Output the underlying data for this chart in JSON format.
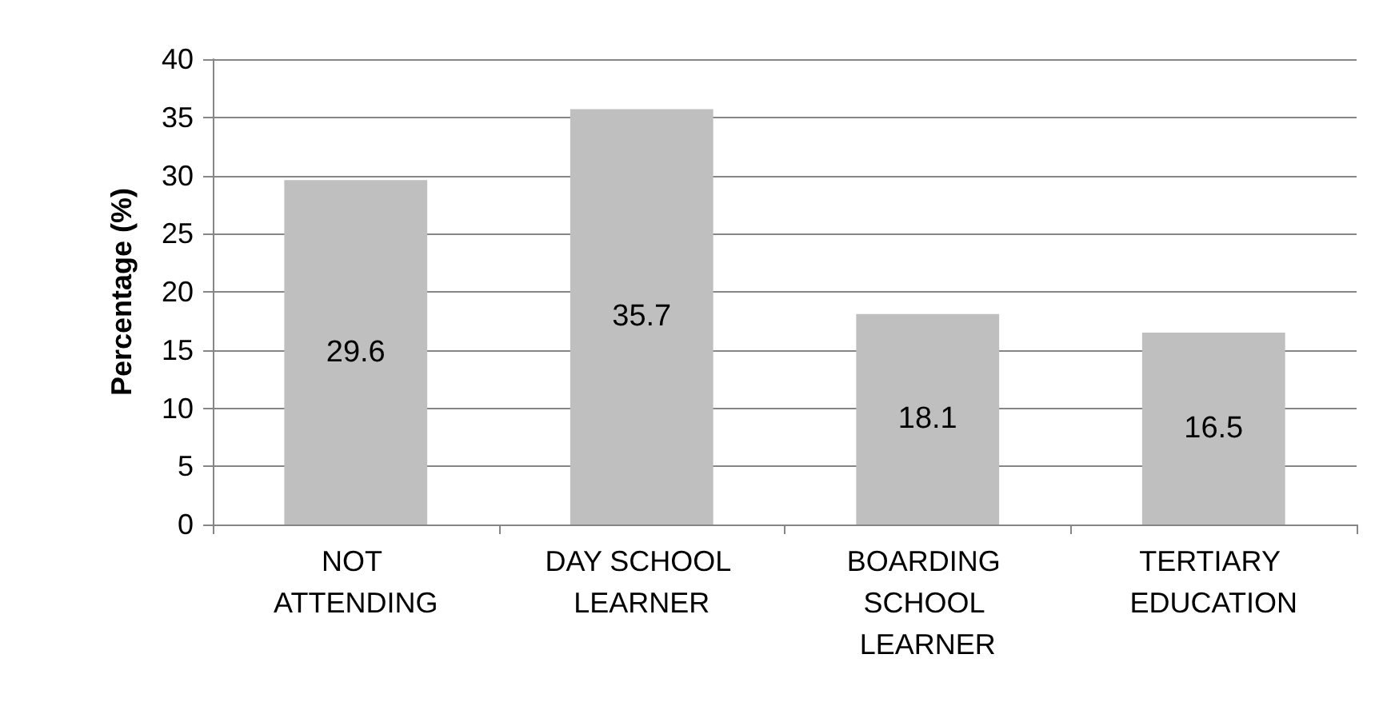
{
  "chart_data": {
    "type": "bar",
    "ylabel": "Percentage (%)",
    "categories": [
      "NOT ATTENDING",
      "DAY SCHOOL LEARNER",
      "BOARDING SCHOOL LEARNER",
      "TERTIARY EDUCATION"
    ],
    "values": [
      29.6,
      35.7,
      18.1,
      16.5
    ],
    "color": "#bfbfbf",
    "ylim": [
      0,
      40
    ],
    "yticks": [
      0,
      5,
      10,
      15,
      20,
      25,
      30,
      35,
      40
    ],
    "grid": "y",
    "data_labels": true
  }
}
